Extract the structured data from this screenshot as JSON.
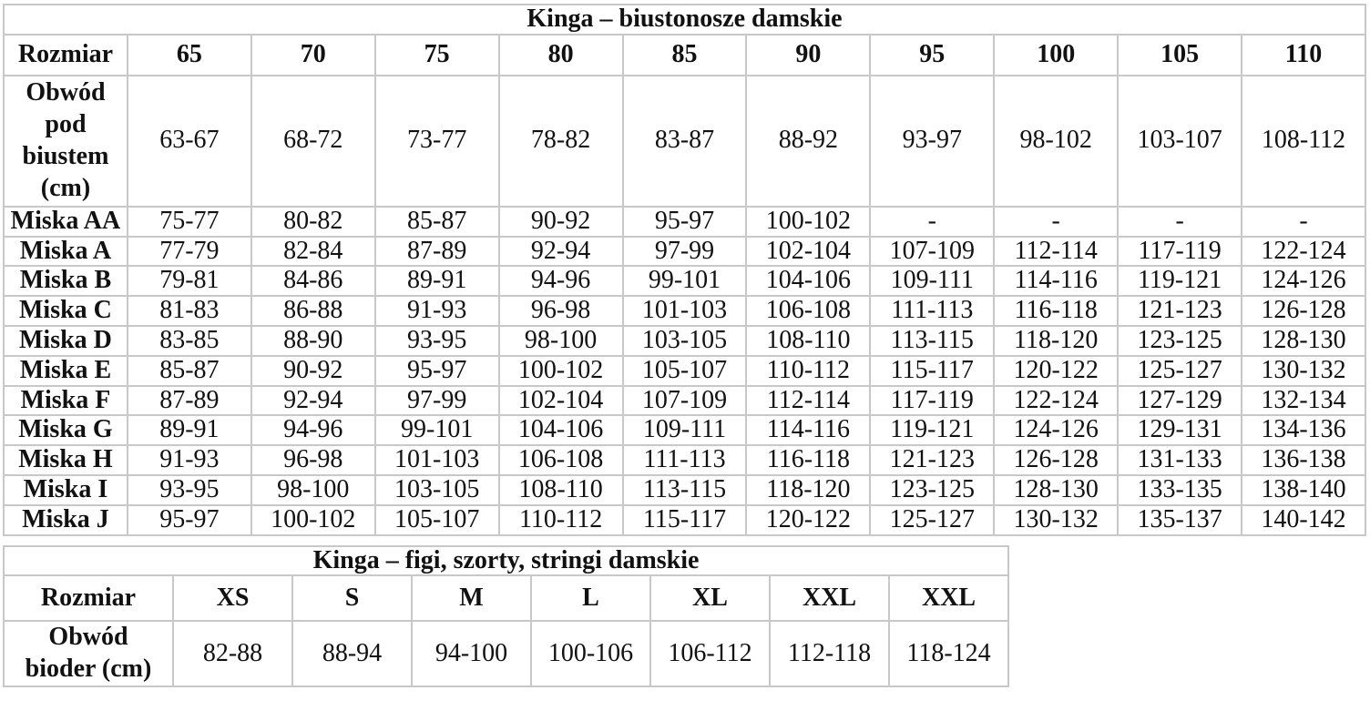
{
  "colors": {
    "background": "#ffffff",
    "border": "#c8c8c8",
    "text": "#111111"
  },
  "bra_table": {
    "title": "Kinga – biustonosze damskie",
    "row_header_label": "Rozmiar",
    "sizes": [
      "65",
      "70",
      "75",
      "80",
      "85",
      "90",
      "95",
      "100",
      "105",
      "110"
    ],
    "underbust_label": "Obwód pod biustem (cm)",
    "underbust": [
      "63-67",
      "68-72",
      "73-77",
      "78-82",
      "83-87",
      "88-92",
      "93-97",
      "98-102",
      "103-107",
      "108-112"
    ],
    "cup_rows": [
      {
        "label": "Miska AA",
        "values": [
          "75-77",
          "80-82",
          "85-87",
          "90-92",
          "95-97",
          "100-102",
          "-",
          "-",
          "-",
          "-"
        ]
      },
      {
        "label": "Miska A",
        "values": [
          "77-79",
          "82-84",
          "87-89",
          "92-94",
          "97-99",
          "102-104",
          "107-109",
          "112-114",
          "117-119",
          "122-124"
        ]
      },
      {
        "label": "Miska B",
        "values": [
          "79-81",
          "84-86",
          "89-91",
          "94-96",
          "99-101",
          "104-106",
          "109-111",
          "114-116",
          "119-121",
          "124-126"
        ]
      },
      {
        "label": "Miska C",
        "values": [
          "81-83",
          "86-88",
          "91-93",
          "96-98",
          "101-103",
          "106-108",
          "111-113",
          "116-118",
          "121-123",
          "126-128"
        ]
      },
      {
        "label": "Miska D",
        "values": [
          "83-85",
          "88-90",
          "93-95",
          "98-100",
          "103-105",
          "108-110",
          "113-115",
          "118-120",
          "123-125",
          "128-130"
        ]
      },
      {
        "label": "Miska E",
        "values": [
          "85-87",
          "90-92",
          "95-97",
          "100-102",
          "105-107",
          "110-112",
          "115-117",
          "120-122",
          "125-127",
          "130-132"
        ]
      },
      {
        "label": "Miska F",
        "values": [
          "87-89",
          "92-94",
          "97-99",
          "102-104",
          "107-109",
          "112-114",
          "117-119",
          "122-124",
          "127-129",
          "132-134"
        ]
      },
      {
        "label": "Miska G",
        "values": [
          "89-91",
          "94-96",
          "99-101",
          "104-106",
          "109-111",
          "114-116",
          "119-121",
          "124-126",
          "129-131",
          "134-136"
        ]
      },
      {
        "label": "Miska H",
        "values": [
          "91-93",
          "96-98",
          "101-103",
          "106-108",
          "111-113",
          "116-118",
          "121-123",
          "126-128",
          "131-133",
          "136-138"
        ]
      },
      {
        "label": "Miska I",
        "values": [
          "93-95",
          "98-100",
          "103-105",
          "108-110",
          "113-115",
          "118-120",
          "123-125",
          "128-130",
          "133-135",
          "138-140"
        ]
      },
      {
        "label": "Miska J",
        "values": [
          "95-97",
          "100-102",
          "105-107",
          "110-112",
          "115-117",
          "120-122",
          "125-127",
          "130-132",
          "135-137",
          "140-142"
        ]
      }
    ]
  },
  "panties_table": {
    "title": "Kinga – figi, szorty, stringi damskie",
    "row_header_label": "Rozmiar",
    "sizes": [
      "XS",
      "S",
      "M",
      "L",
      "XL",
      "XXL",
      "XXL"
    ],
    "hips_label": "Obwód bioder (cm)",
    "hips": [
      "82-88",
      "88-94",
      "94-100",
      "100-106",
      "106-112",
      "112-118",
      "118-124"
    ]
  }
}
